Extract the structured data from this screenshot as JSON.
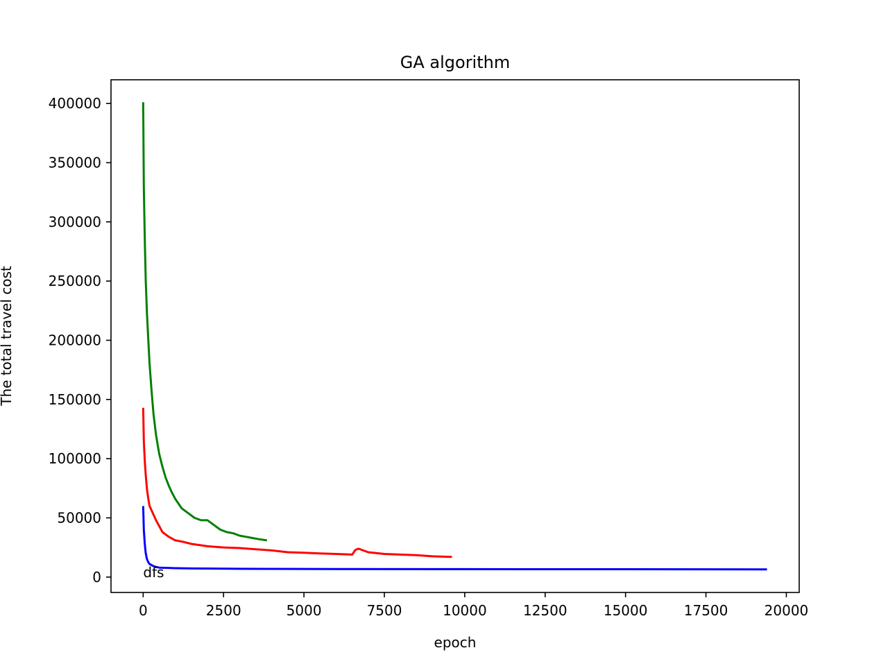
{
  "chart_data": {
    "type": "line",
    "title": "GA algorithm",
    "xlabel": "epoch",
    "ylabel": "The total travel cost",
    "xlim": [
      -1000,
      20400
    ],
    "ylim": [
      -13000,
      420000
    ],
    "xticks": [
      0,
      2500,
      5000,
      7500,
      10000,
      12500,
      15000,
      17500,
      20000
    ],
    "yticks": [
      0,
      50000,
      100000,
      150000,
      200000,
      250000,
      300000,
      350000,
      400000
    ],
    "grid": false,
    "legend": "none",
    "annotations": [
      {
        "text": "dfs",
        "x": 0,
        "y": 0
      }
    ],
    "series": [
      {
        "color": "#008000",
        "x": [
          0,
          20,
          50,
          80,
          120,
          160,
          200,
          260,
          320,
          400,
          500,
          600,
          700,
          800,
          900,
          1000,
          1100,
          1200,
          1400,
          1600,
          1800,
          2000,
          2200,
          2400,
          2600,
          2800,
          3000,
          3200,
          3400,
          3600,
          3850
        ],
        "y": [
          401000,
          330000,
          285000,
          250000,
          222000,
          200000,
          180000,
          158000,
          138000,
          120000,
          104000,
          93000,
          84000,
          77000,
          71000,
          66000,
          62000,
          58000,
          54000,
          50000,
          48000,
          48000,
          44000,
          40000,
          38000,
          37000,
          35000,
          34000,
          33000,
          32000,
          31000
        ]
      },
      {
        "color": "#ff0000",
        "x": [
          0,
          20,
          50,
          80,
          120,
          160,
          200,
          300,
          400,
          500,
          600,
          800,
          1000,
          1200,
          1500,
          2000,
          2500,
          3000,
          3500,
          4000,
          4500,
          5000,
          5500,
          6000,
          6500,
          6600,
          6700,
          6800,
          7000,
          7500,
          8000,
          8500,
          9000,
          9600
        ],
        "y": [
          143000,
          115000,
          98000,
          86000,
          74000,
          66000,
          60000,
          54000,
          48000,
          43000,
          38000,
          34000,
          31000,
          30000,
          28000,
          26000,
          25000,
          24500,
          23500,
          22500,
          21000,
          20500,
          20000,
          19500,
          19000,
          23000,
          24000,
          23000,
          21000,
          19500,
          19000,
          18500,
          17500,
          17000
        ]
      },
      {
        "color": "#0000ff",
        "x": [
          0,
          20,
          50,
          80,
          120,
          160,
          200,
          300,
          400,
          500,
          700,
          1000,
          1500,
          2000,
          3000,
          4000,
          6000,
          10000,
          15000,
          19400
        ],
        "y": [
          60000,
          40000,
          28000,
          20000,
          15000,
          12500,
          11000,
          9500,
          8500,
          8000,
          7800,
          7500,
          7300,
          7200,
          7000,
          6900,
          6800,
          6700,
          6600,
          6500
        ]
      }
    ]
  }
}
